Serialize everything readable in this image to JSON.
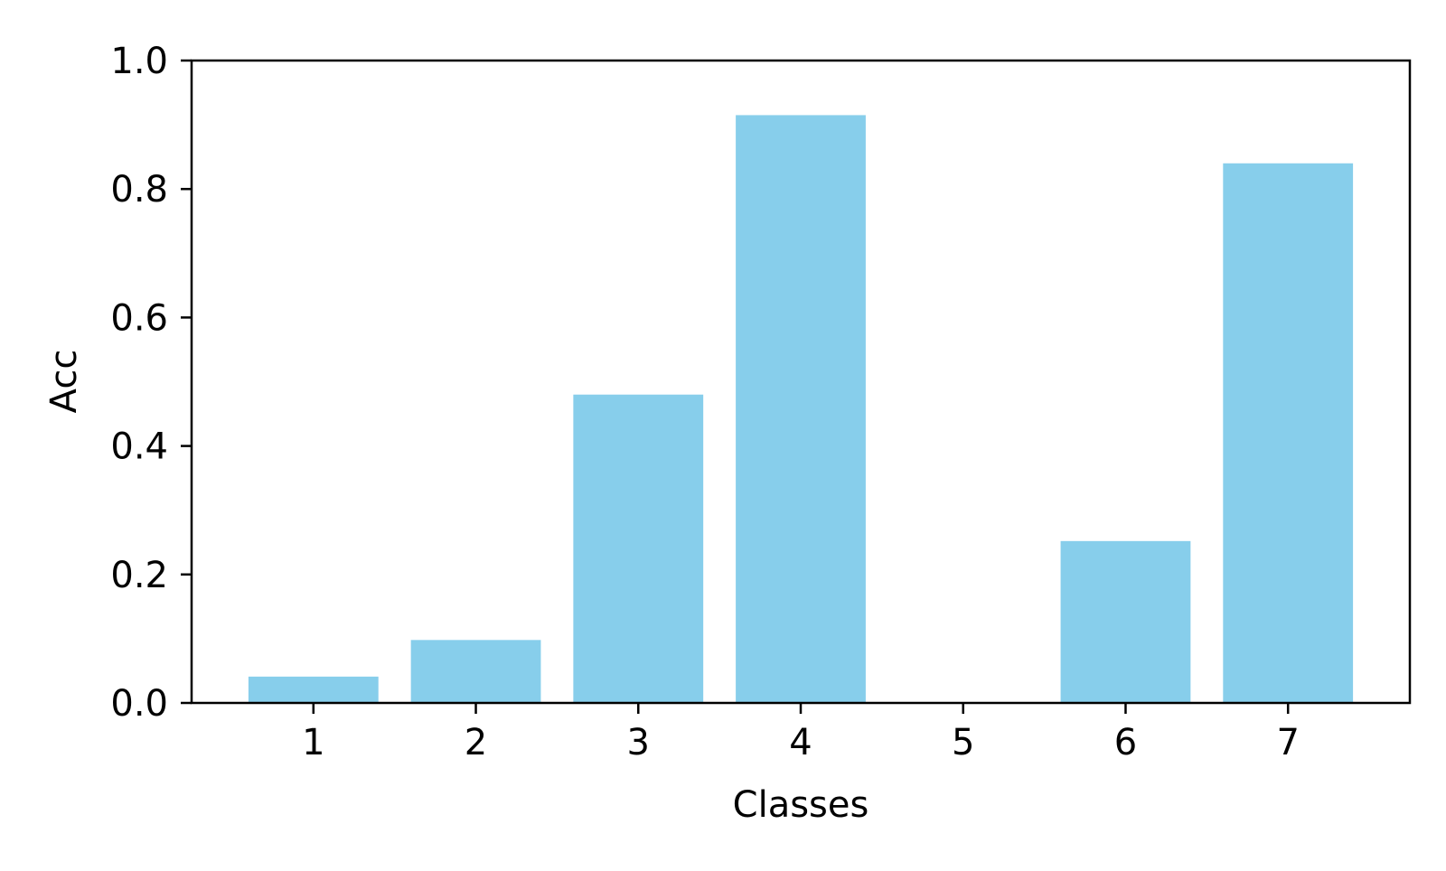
{
  "chart_data": {
    "type": "bar",
    "title": "",
    "xlabel": "Classes",
    "ylabel": "Acc",
    "categories": [
      "1",
      "2",
      "3",
      "4",
      "5",
      "6",
      "7"
    ],
    "values": [
      0.041,
      0.098,
      0.48,
      0.915,
      0.0,
      0.252,
      0.84
    ],
    "ylim": [
      0,
      1.0
    ],
    "yticks": [
      0.0,
      0.2,
      0.4,
      0.6,
      0.8,
      1.0
    ],
    "ytick_labels": [
      "0.0",
      "0.2",
      "0.4",
      "0.6",
      "0.8",
      "1.0"
    ],
    "grid": false,
    "legend": "none",
    "bar_color": "#87CEEB",
    "axis_color": "#000000"
  }
}
